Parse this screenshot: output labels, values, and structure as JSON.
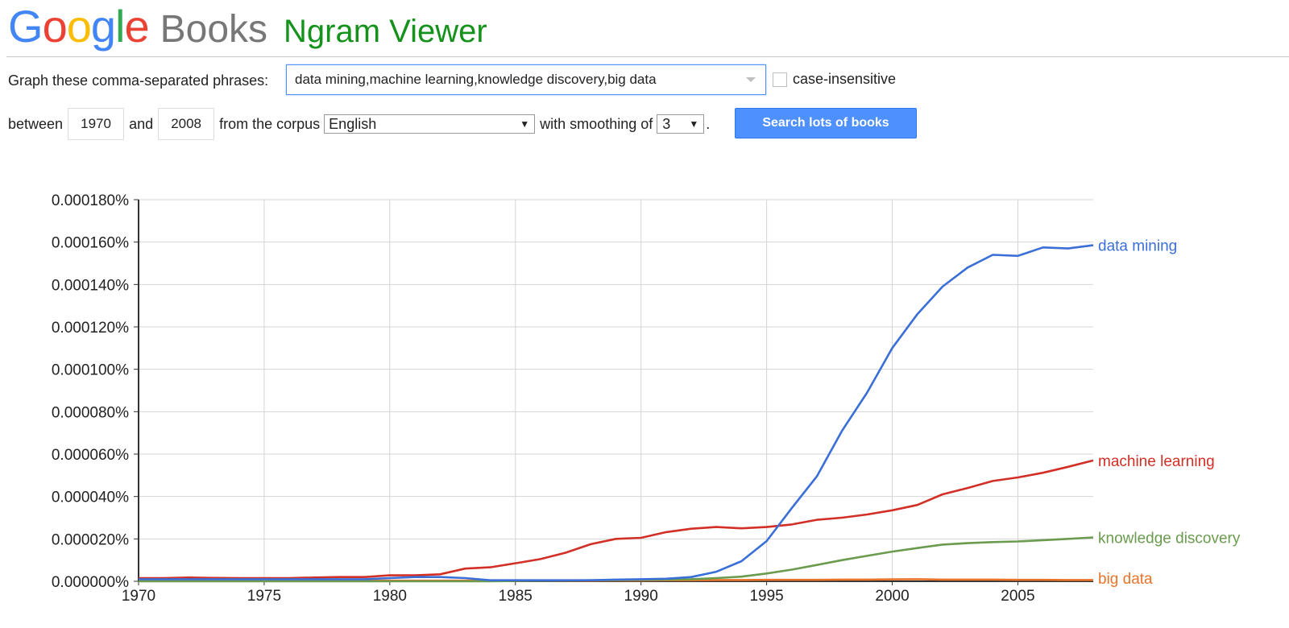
{
  "header": {
    "google_letters": [
      {
        "ch": "G",
        "color": "#4285f4"
      },
      {
        "ch": "o",
        "color": "#ea4335"
      },
      {
        "ch": "o",
        "color": "#fbbc05"
      },
      {
        "ch": "g",
        "color": "#4285f4"
      },
      {
        "ch": "l",
        "color": "#34a853"
      },
      {
        "ch": "e",
        "color": "#ea4335"
      }
    ],
    "books": "Books",
    "ngram_viewer": "Ngram Viewer"
  },
  "form": {
    "graph_label": "Graph these comma-separated phrases:",
    "phrases_value": "data mining,machine learning,knowledge discovery,big data",
    "case_insensitive_label": "case-insensitive",
    "between_label": "between",
    "year_start": "1970",
    "and_label": "and",
    "year_end": "2008",
    "from_corpus_label": "from the corpus",
    "corpus_value": "English",
    "smoothing_label": "with smoothing of",
    "smoothing_value": "3",
    "period": ".",
    "search_button": "Search lots of books"
  },
  "chart_data": {
    "type": "line",
    "x_start": 1970,
    "x_end": 2008,
    "xlim": [
      1970,
      2008
    ],
    "ylim": [
      0,
      0.00018
    ],
    "y_ticks": [
      "0.000000%",
      "0.000020%",
      "0.000040%",
      "0.000060%",
      "0.000080%",
      "0.000100%",
      "0.000120%",
      "0.000140%",
      "0.000160%",
      "0.000180%"
    ],
    "x_ticks": [
      "1970",
      "1975",
      "1980",
      "1985",
      "1990",
      "1995",
      "2000",
      "2005"
    ],
    "grid": true,
    "legend": "inline-right",
    "series": [
      {
        "name": "data mining",
        "color": "#3b6fd8",
        "values": [
          1e-06,
          1e-06,
          1e-06,
          1e-06,
          1e-06,
          1e-06,
          1e-06,
          1e-06,
          1e-06,
          1e-06,
          1.5e-06,
          2e-06,
          2e-06,
          1.5e-06,
          5e-07,
          5e-07,
          5e-07,
          5e-07,
          5e-07,
          8e-07,
          1e-06,
          1.2e-06,
          2e-06,
          4.5e-06,
          9.5e-06,
          1.9e-05,
          3.45e-05,
          4.95e-05,
          7.1e-05,
          8.9e-05,
          0.00011,
          0.000126,
          0.000139,
          0.000148,
          0.000154,
          0.0001535,
          0.0001575,
          0.000157,
          0.0001585
        ]
      },
      {
        "name": "machine learning",
        "color": "#d22f27",
        "values": [
          1.5e-06,
          1.5e-06,
          1.8e-06,
          1.6e-06,
          1.5e-06,
          1.5e-06,
          1.5e-06,
          1.8e-06,
          2e-06,
          2e-06,
          2.8e-06,
          2.8e-06,
          3.3e-06,
          6e-06,
          6.6e-06,
          8.5e-06,
          1.05e-05,
          1.35e-05,
          1.75e-05,
          2e-05,
          2.05e-05,
          2.32e-05,
          2.48e-05,
          2.56e-05,
          2.5e-05,
          2.56e-05,
          2.68e-05,
          2.9e-05,
          3e-05,
          3.15e-05,
          3.35e-05,
          3.6e-05,
          4.1e-05,
          4.4e-05,
          4.73e-05,
          4.9e-05,
          5.12e-05,
          5.4e-05,
          5.7e-05
        ]
      },
      {
        "name": "knowledge discovery",
        "color": "#6a9b4e",
        "values": [
          0,
          0,
          0,
          0,
          0,
          0,
          0,
          0,
          0,
          0,
          0,
          0,
          0,
          0,
          0,
          2e-07,
          3e-07,
          4e-07,
          5e-07,
          6e-07,
          7e-07,
          8e-07,
          1e-06,
          1.5e-06,
          2.2e-06,
          3.7e-06,
          5.5e-06,
          7.7e-06,
          1e-05,
          1.2e-05,
          1.4e-05,
          1.57e-05,
          1.73e-05,
          1.8e-05,
          1.85e-05,
          1.88e-05,
          1.94e-05,
          2e-05,
          2.07e-05
        ]
      },
      {
        "name": "big data",
        "color": "#e8742b",
        "values": [
          3e-07,
          3e-07,
          3e-07,
          3e-07,
          3e-07,
          3e-07,
          3e-07,
          3e-07,
          3e-07,
          3e-07,
          3e-07,
          3e-07,
          3e-07,
          3e-07,
          3e-07,
          3e-07,
          3e-07,
          3e-07,
          3e-07,
          4e-07,
          4e-07,
          5e-07,
          5e-07,
          6e-07,
          6e-07,
          7e-07,
          7e-07,
          7e-07,
          8e-07,
          8e-07,
          9e-07,
          1e-06,
          8e-07,
          8e-07,
          8e-07,
          7e-07,
          7e-07,
          6e-07,
          6e-07
        ]
      }
    ]
  }
}
